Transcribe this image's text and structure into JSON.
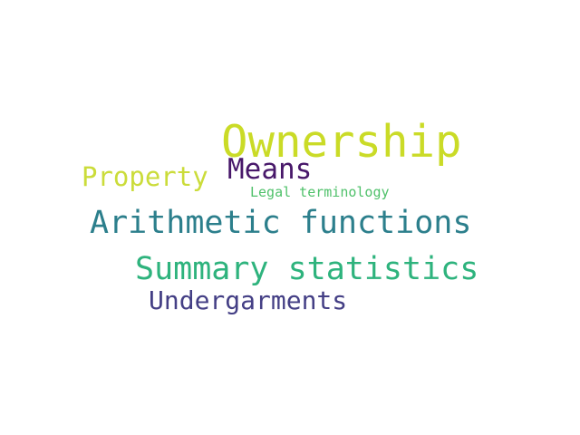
{
  "words": [
    {
      "text": "Ownership",
      "color": "#cadb27"
    },
    {
      "text": "Means",
      "color": "#48186a"
    },
    {
      "text": "Property",
      "color": "#cbdc3a"
    },
    {
      "text": "Legal terminology",
      "color": "#4fc16a"
    },
    {
      "text": "Arithmetic functions",
      "color": "#2c7f8c"
    },
    {
      "text": "Summary statistics",
      "color": "#2eb37d"
    },
    {
      "text": "Undergarments",
      "color": "#443f85"
    }
  ]
}
